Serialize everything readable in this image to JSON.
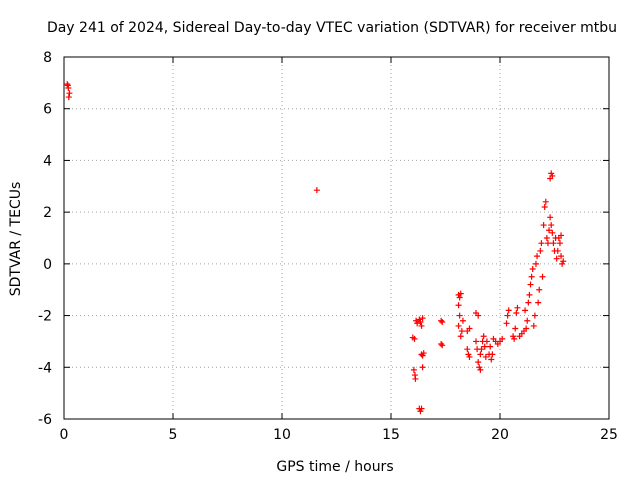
{
  "chart_data": {
    "type": "scatter",
    "title": "Day 241 of 2024, Sidereal Day-to-day VTEC variation (SDTVAR) for receiver mtbu",
    "xlabel": "GPS time / hours",
    "ylabel": "SDTVAR / TECUs",
    "xlim": [
      0,
      25
    ],
    "ylim": [
      -6,
      8
    ],
    "xticks": [
      0,
      5,
      10,
      15,
      20,
      25
    ],
    "yticks": [
      -6,
      -4,
      -2,
      0,
      2,
      4,
      6,
      8
    ],
    "grid": true,
    "marker": "+",
    "series": [
      {
        "name": "SDTVAR",
        "color": "#ff0000",
        "points": [
          [
            0.15,
            6.95
          ],
          [
            0.2,
            6.8
          ],
          [
            0.25,
            6.6
          ],
          [
            0.22,
            6.45
          ],
          [
            0.18,
            6.9
          ],
          [
            11.6,
            2.85
          ],
          [
            16.0,
            -2.85
          ],
          [
            16.05,
            -4.1
          ],
          [
            16.1,
            -4.3
          ],
          [
            16.12,
            -4.45
          ],
          [
            16.08,
            -2.9
          ],
          [
            16.15,
            -2.2
          ],
          [
            16.2,
            -2.3
          ],
          [
            16.3,
            -2.15
          ],
          [
            16.35,
            -2.25
          ],
          [
            16.4,
            -2.4
          ],
          [
            16.45,
            -2.1
          ],
          [
            16.3,
            -5.6
          ],
          [
            16.35,
            -5.7
          ],
          [
            16.4,
            -5.6
          ],
          [
            16.4,
            -3.5
          ],
          [
            16.45,
            -3.55
          ],
          [
            16.5,
            -3.45
          ],
          [
            16.45,
            -4.0
          ],
          [
            17.3,
            -2.2
          ],
          [
            17.35,
            -2.25
          ],
          [
            17.3,
            -3.1
          ],
          [
            17.35,
            -3.15
          ],
          [
            18.1,
            -1.2
          ],
          [
            18.15,
            -1.3
          ],
          [
            18.2,
            -1.15
          ],
          [
            18.1,
            -1.6
          ],
          [
            18.15,
            -2.0
          ],
          [
            18.1,
            -2.4
          ],
          [
            18.2,
            -2.8
          ],
          [
            18.25,
            -2.6
          ],
          [
            18.3,
            -2.2
          ],
          [
            18.5,
            -3.3
          ],
          [
            18.55,
            -3.5
          ],
          [
            18.6,
            -3.6
          ],
          [
            18.5,
            -2.6
          ],
          [
            18.6,
            -2.5
          ],
          [
            18.9,
            -1.9
          ],
          [
            19.0,
            -2.0
          ],
          [
            18.9,
            -3.0
          ],
          [
            18.95,
            -3.3
          ],
          [
            19.0,
            -3.8
          ],
          [
            19.05,
            -4.0
          ],
          [
            19.1,
            -4.1
          ],
          [
            19.1,
            -3.5
          ],
          [
            19.15,
            -3.3
          ],
          [
            19.2,
            -3.0
          ],
          [
            19.25,
            -2.8
          ],
          [
            19.3,
            -3.2
          ],
          [
            19.35,
            -3.6
          ],
          [
            19.4,
            -3.0
          ],
          [
            19.5,
            -3.5
          ],
          [
            19.55,
            -3.2
          ],
          [
            19.6,
            -3.7
          ],
          [
            19.65,
            -3.5
          ],
          [
            19.7,
            -2.9
          ],
          [
            19.8,
            -3.0
          ],
          [
            19.9,
            -3.1
          ],
          [
            20.0,
            -3.0
          ],
          [
            20.1,
            -2.9
          ],
          [
            20.3,
            -2.3
          ],
          [
            20.35,
            -2.0
          ],
          [
            20.4,
            -1.8
          ],
          [
            20.6,
            -2.8
          ],
          [
            20.65,
            -2.9
          ],
          [
            20.7,
            -2.5
          ],
          [
            20.75,
            -1.9
          ],
          [
            20.8,
            -1.7
          ],
          [
            20.9,
            -2.8
          ],
          [
            21.0,
            -2.7
          ],
          [
            21.1,
            -2.6
          ],
          [
            21.15,
            -1.8
          ],
          [
            21.2,
            -2.5
          ],
          [
            21.25,
            -2.2
          ],
          [
            21.3,
            -1.5
          ],
          [
            21.35,
            -1.2
          ],
          [
            21.4,
            -0.8
          ],
          [
            21.45,
            -0.5
          ],
          [
            21.5,
            -0.2
          ],
          [
            21.55,
            -2.4
          ],
          [
            21.6,
            -2.0
          ],
          [
            21.65,
            0.0
          ],
          [
            21.7,
            0.3
          ],
          [
            21.75,
            -1.5
          ],
          [
            21.8,
            -1.0
          ],
          [
            21.85,
            0.5
          ],
          [
            21.9,
            0.8
          ],
          [
            21.95,
            -0.5
          ],
          [
            22.0,
            1.5
          ],
          [
            22.05,
            2.2
          ],
          [
            22.1,
            2.4
          ],
          [
            22.15,
            1.0
          ],
          [
            22.2,
            0.8
          ],
          [
            22.25,
            1.3
          ],
          [
            22.3,
            1.8
          ],
          [
            22.35,
            1.5
          ],
          [
            22.3,
            3.3
          ],
          [
            22.35,
            3.5
          ],
          [
            22.4,
            3.4
          ],
          [
            22.4,
            1.2
          ],
          [
            22.45,
            0.8
          ],
          [
            22.5,
            0.5
          ],
          [
            22.55,
            1.0
          ],
          [
            22.6,
            0.2
          ],
          [
            22.65,
            0.5
          ],
          [
            22.7,
            1.0
          ],
          [
            22.75,
            0.8
          ],
          [
            22.8,
            0.3
          ],
          [
            22.85,
            0.0
          ],
          [
            22.9,
            0.1
          ],
          [
            22.8,
            1.1
          ]
        ]
      }
    ]
  }
}
